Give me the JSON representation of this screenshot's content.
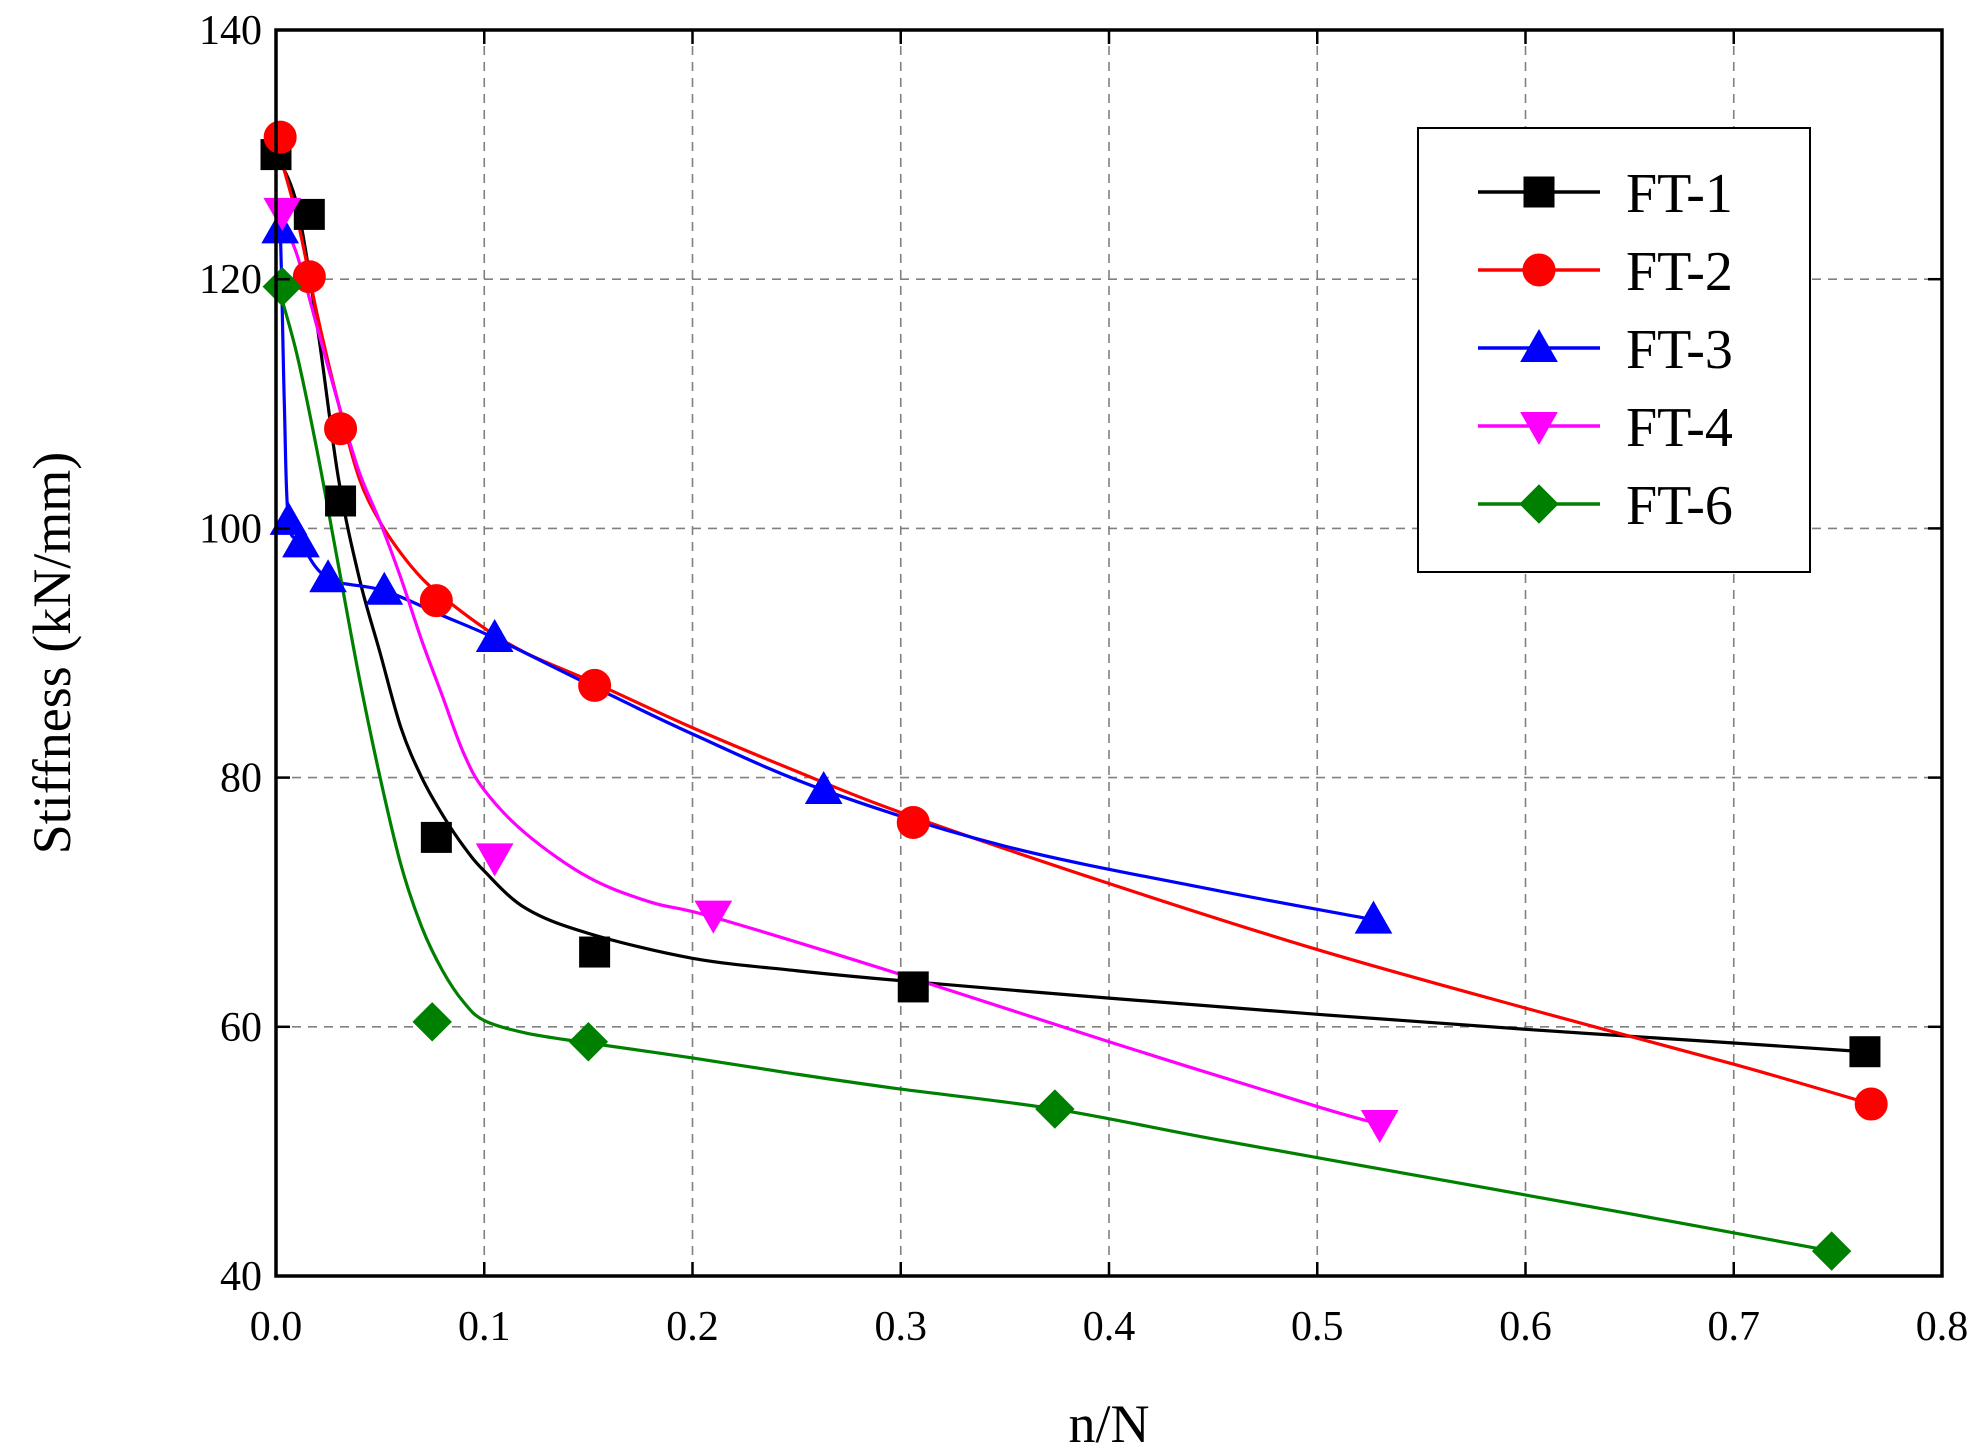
{
  "chart_data": {
    "type": "line",
    "title": "",
    "xlabel": "n/N",
    "ylabel": "Stiffness (kN/mm)",
    "xlim": [
      0.0,
      0.8
    ],
    "ylim": [
      40,
      140
    ],
    "xticks": [
      "0.0",
      "0.1",
      "0.2",
      "0.3",
      "0.4",
      "0.5",
      "0.6",
      "0.7",
      "0.8"
    ],
    "yticks": [
      "40",
      "60",
      "80",
      "100",
      "120",
      "140"
    ],
    "grid": true,
    "legend_position": "top-right",
    "series": [
      {
        "name": "FT-1",
        "color": "#000000",
        "marker": "square",
        "points": [
          [
            0.0,
            130.0
          ],
          [
            0.016,
            125.2
          ],
          [
            0.031,
            102.2
          ],
          [
            0.077,
            75.2
          ],
          [
            0.153,
            66.0
          ],
          [
            0.306,
            63.2
          ],
          [
            0.763,
            58.0
          ]
        ],
        "curve": [
          [
            0.0,
            130.0
          ],
          [
            0.01,
            126.0
          ],
          [
            0.02,
            116.0
          ],
          [
            0.03,
            104.0
          ],
          [
            0.04,
            96.0
          ],
          [
            0.05,
            90.0
          ],
          [
            0.06,
            84.0
          ],
          [
            0.07,
            80.0
          ],
          [
            0.08,
            77.0
          ],
          [
            0.09,
            74.5
          ],
          [
            0.1,
            72.5
          ],
          [
            0.12,
            69.5
          ],
          [
            0.15,
            67.5
          ],
          [
            0.2,
            65.5
          ],
          [
            0.25,
            64.5
          ],
          [
            0.3,
            63.7
          ],
          [
            0.4,
            62.3
          ],
          [
            0.5,
            61.0
          ],
          [
            0.6,
            59.8
          ],
          [
            0.7,
            58.7
          ],
          [
            0.763,
            58.0
          ]
        ]
      },
      {
        "name": "FT-2",
        "color": "#ff0000",
        "marker": "circle",
        "points": [
          [
            0.002,
            131.4
          ],
          [
            0.016,
            120.2
          ],
          [
            0.031,
            108.0
          ],
          [
            0.077,
            94.2
          ],
          [
            0.153,
            87.4
          ],
          [
            0.306,
            76.4
          ],
          [
            0.766,
            53.8
          ]
        ],
        "curve": [
          [
            0.0,
            131.0
          ],
          [
            0.01,
            125.0
          ],
          [
            0.02,
            117.0
          ],
          [
            0.03,
            110.0
          ],
          [
            0.04,
            104.0
          ],
          [
            0.05,
            100.5
          ],
          [
            0.06,
            98.0
          ],
          [
            0.07,
            96.0
          ],
          [
            0.08,
            94.5
          ],
          [
            0.1,
            92.0
          ],
          [
            0.12,
            90.0
          ],
          [
            0.153,
            87.6
          ],
          [
            0.2,
            84.0
          ],
          [
            0.25,
            80.5
          ],
          [
            0.3,
            77.2
          ],
          [
            0.4,
            71.5
          ],
          [
            0.5,
            66.2
          ],
          [
            0.6,
            61.5
          ],
          [
            0.7,
            57.0
          ],
          [
            0.766,
            53.8
          ]
        ]
      },
      {
        "name": "FT-3",
        "color": "#0000ff",
        "marker": "triangle-up",
        "points": [
          [
            0.002,
            124.0
          ],
          [
            0.006,
            100.6
          ],
          [
            0.012,
            98.8
          ],
          [
            0.025,
            96.0
          ],
          [
            0.052,
            95.0
          ],
          [
            0.105,
            91.2
          ],
          [
            0.263,
            79.0
          ],
          [
            0.527,
            68.6
          ]
        ],
        "curve": [
          [
            0.0,
            124.5
          ],
          [
            0.002,
            124.0
          ],
          [
            0.004,
            110.0
          ],
          [
            0.006,
            100.6
          ],
          [
            0.012,
            98.8
          ],
          [
            0.025,
            96.0
          ],
          [
            0.052,
            95.0
          ],
          [
            0.08,
            93.0
          ],
          [
            0.105,
            91.2
          ],
          [
            0.15,
            87.5
          ],
          [
            0.2,
            83.5
          ],
          [
            0.263,
            79.0
          ],
          [
            0.35,
            74.5
          ],
          [
            0.45,
            71.0
          ],
          [
            0.527,
            68.6
          ]
        ]
      },
      {
        "name": "FT-4",
        "color": "#ff00ff",
        "marker": "triangle-down",
        "points": [
          [
            0.003,
            125.4
          ],
          [
            0.105,
            73.6
          ],
          [
            0.21,
            69.0
          ],
          [
            0.53,
            52.2
          ]
        ],
        "curve": [
          [
            0.0,
            126.0
          ],
          [
            0.01,
            122.0
          ],
          [
            0.02,
            116.0
          ],
          [
            0.03,
            110.0
          ],
          [
            0.04,
            104.5
          ],
          [
            0.05,
            100.5
          ],
          [
            0.06,
            96.0
          ],
          [
            0.07,
            91.0
          ],
          [
            0.08,
            86.5
          ],
          [
            0.09,
            82.0
          ],
          [
            0.1,
            79.0
          ],
          [
            0.12,
            75.5
          ],
          [
            0.15,
            72.0
          ],
          [
            0.18,
            70.0
          ],
          [
            0.21,
            68.8
          ],
          [
            0.3,
            64.2
          ],
          [
            0.4,
            58.8
          ],
          [
            0.5,
            53.6
          ],
          [
            0.53,
            52.2
          ]
        ]
      },
      {
        "name": "FT-6",
        "color": "#008000",
        "marker": "diamond",
        "points": [
          [
            0.003,
            119.4
          ],
          [
            0.075,
            60.4
          ],
          [
            0.15,
            58.8
          ],
          [
            0.374,
            53.4
          ],
          [
            0.747,
            42.0
          ]
        ],
        "curve": [
          [
            0.0,
            120.0
          ],
          [
            0.01,
            114.0
          ],
          [
            0.02,
            106.0
          ],
          [
            0.03,
            97.0
          ],
          [
            0.04,
            88.0
          ],
          [
            0.05,
            80.0
          ],
          [
            0.06,
            73.0
          ],
          [
            0.07,
            68.0
          ],
          [
            0.08,
            64.5
          ],
          [
            0.09,
            62.0
          ],
          [
            0.1,
            60.5
          ],
          [
            0.12,
            59.5
          ],
          [
            0.15,
            58.7
          ],
          [
            0.2,
            57.5
          ],
          [
            0.25,
            56.2
          ],
          [
            0.3,
            55.0
          ],
          [
            0.374,
            53.4
          ],
          [
            0.45,
            51.0
          ],
          [
            0.55,
            48.0
          ],
          [
            0.65,
            45.0
          ],
          [
            0.747,
            42.0
          ]
        ]
      }
    ]
  }
}
